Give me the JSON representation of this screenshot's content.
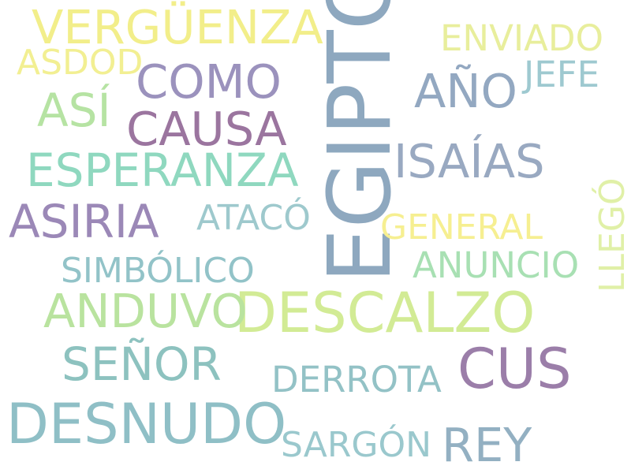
{
  "wordcloud": {
    "words": [
      {
        "text": "EGIPTO",
        "color": "#8ea8bf"
      },
      {
        "text": "DESCALZO",
        "color": "#d2eb95"
      },
      {
        "text": "DESNUDO",
        "color": "#8fbfc6"
      },
      {
        "text": "VERGÜENZA",
        "color": "#f2ee8a"
      },
      {
        "text": "ESPERANZA",
        "color": "#8fd8bf"
      },
      {
        "text": "ASIRIA",
        "color": "#9b88b7"
      },
      {
        "text": "CAUSA",
        "color": "#9b759f"
      },
      {
        "text": "COMO",
        "color": "#9b92bd"
      },
      {
        "text": "AÑO",
        "color": "#93a8c1"
      },
      {
        "text": "ISAÍAS",
        "color": "#99a9c1"
      },
      {
        "text": "ANDUVO",
        "color": "#b9e39f"
      },
      {
        "text": "SEÑOR",
        "color": "#8dc2bf"
      },
      {
        "text": "CUS",
        "color": "#9b7ea9"
      },
      {
        "text": "REY",
        "color": "#93b0c2"
      },
      {
        "text": "ASÍ",
        "color": "#b6e3a3"
      },
      {
        "text": "ENVIADO",
        "color": "#e8ee9c"
      },
      {
        "text": "ASDOD",
        "color": "#f2ef92"
      },
      {
        "text": "JEFE",
        "color": "#9ec9d0"
      },
      {
        "text": "ATACÓ",
        "color": "#9ec9cd"
      },
      {
        "text": "GENERAL",
        "color": "#f6ef91"
      },
      {
        "text": "ANUNCIO",
        "color": "#a8e0b3"
      },
      {
        "text": "SIMBÓLICO",
        "color": "#92c3c8"
      },
      {
        "text": "DERROTA",
        "color": "#93c2c6"
      },
      {
        "text": "SARGÓN",
        "color": "#9ac8cd"
      },
      {
        "text": "LLEGÓ",
        "color": "#e0f0a7"
      }
    ]
  }
}
